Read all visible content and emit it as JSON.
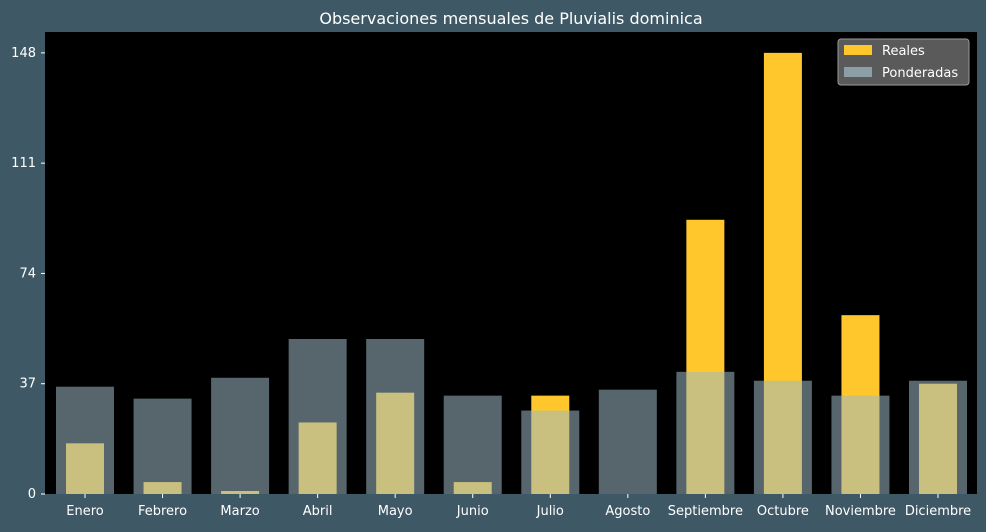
{
  "chart_data": {
    "type": "bar",
    "title": "Observaciones mensuales de Pluvialis dominica",
    "xlabel": "",
    "ylabel": "",
    "categories": [
      "Enero",
      "Febrero",
      "Marzo",
      "Abril",
      "Mayo",
      "Junio",
      "Julio",
      "Agosto",
      "Septiembre",
      "Octubre",
      "Noviembre",
      "Diciembre"
    ],
    "series": [
      {
        "name": "Reales",
        "color": "#ffc72c",
        "values": [
          17,
          4,
          1,
          24,
          34,
          4,
          33,
          0,
          92,
          148,
          60,
          37
        ]
      },
      {
        "name": "Ponderadas",
        "color": "#d2c98a",
        "overlay_color": "#9cbac4",
        "values": [
          36,
          32,
          39,
          52,
          52,
          33,
          28,
          35,
          41,
          38,
          33,
          38
        ]
      }
    ],
    "yticks": [
      0,
      37,
      74,
      111,
      148
    ],
    "ylim": [
      0,
      155
    ],
    "legend": "top-right",
    "grid": false,
    "colors": {
      "background": "#3f5866",
      "plot_background": "#000000",
      "text": "#ffffff",
      "legend_background": "#5a5a5a"
    }
  }
}
